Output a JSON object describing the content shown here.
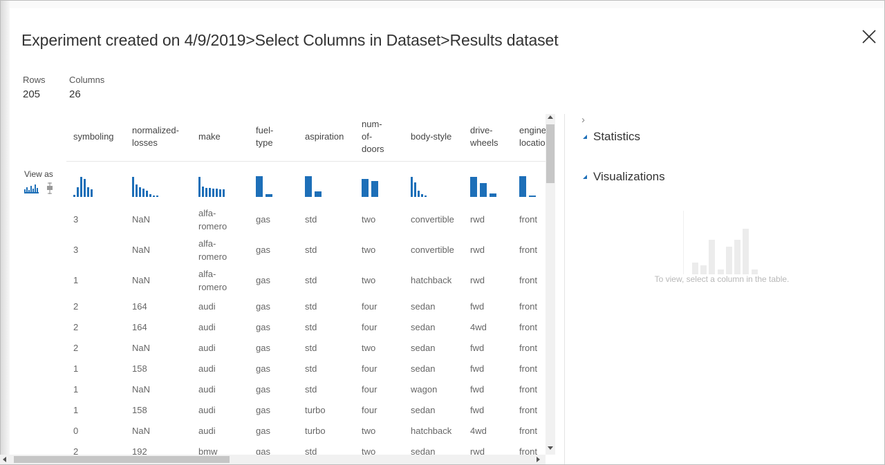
{
  "breadcrumb": {
    "title": "Experiment created on 4/9/2019>Select Columns in Dataset>Results dataset"
  },
  "summary": {
    "rows_label": "Rows",
    "rows_value": "205",
    "columns_label": "Columns",
    "columns_value": "26"
  },
  "view_as": {
    "label": "View as"
  },
  "table": {
    "headers": [
      "symboling",
      "normalized-\nlosses",
      "make",
      "fuel-\ntype",
      "aspiration",
      "num-\nof-\ndoors",
      "body-style",
      "drive-\nwheels",
      "engine-\nlocation"
    ],
    "rows": [
      [
        "3",
        "NaN",
        "alfa-\nromero",
        "gas",
        "std",
        "two",
        "convertible",
        "rwd",
        "front"
      ],
      [
        "3",
        "NaN",
        "alfa-\nromero",
        "gas",
        "std",
        "two",
        "convertible",
        "rwd",
        "front"
      ],
      [
        "1",
        "NaN",
        "alfa-\nromero",
        "gas",
        "std",
        "two",
        "hatchback",
        "rwd",
        "front"
      ],
      [
        "2",
        "164",
        "audi",
        "gas",
        "std",
        "four",
        "sedan",
        "fwd",
        "front"
      ],
      [
        "2",
        "164",
        "audi",
        "gas",
        "std",
        "four",
        "sedan",
        "4wd",
        "front"
      ],
      [
        "2",
        "NaN",
        "audi",
        "gas",
        "std",
        "two",
        "sedan",
        "fwd",
        "front"
      ],
      [
        "1",
        "158",
        "audi",
        "gas",
        "std",
        "four",
        "sedan",
        "fwd",
        "front"
      ],
      [
        "1",
        "NaN",
        "audi",
        "gas",
        "std",
        "four",
        "wagon",
        "fwd",
        "front"
      ],
      [
        "1",
        "158",
        "audi",
        "gas",
        "turbo",
        "four",
        "sedan",
        "fwd",
        "front"
      ],
      [
        "0",
        "NaN",
        "audi",
        "gas",
        "turbo",
        "two",
        "hatchback",
        "4wd",
        "front"
      ],
      [
        "2",
        "192",
        "bmw",
        "gas",
        "std",
        "two",
        "sedan",
        "rwd",
        "front"
      ]
    ],
    "histograms": [
      [
        0.1,
        0.45,
        0.95,
        0.85,
        0.45,
        0.35
      ],
      [
        0.95,
        0.6,
        0.45,
        0.4,
        0.3,
        0.12,
        0.05,
        0.05
      ],
      [
        0.95,
        0.5,
        0.42,
        0.42,
        0.4,
        0.4,
        0.38,
        0.38
      ],
      [
        1.0,
        0.12
      ],
      [
        1.0,
        0.25
      ],
      [
        0.85,
        0.75
      ],
      [
        0.95,
        0.7,
        0.3,
        0.12,
        0.05
      ],
      [
        0.95,
        0.65,
        0.15
      ],
      [
        1.0,
        0.03
      ]
    ],
    "accent_color": "#1d6fb8"
  },
  "right_panel": {
    "statistics_label": "Statistics",
    "visualizations_label": "Visualizations",
    "empty_hint": "To view, select a column in the table."
  }
}
